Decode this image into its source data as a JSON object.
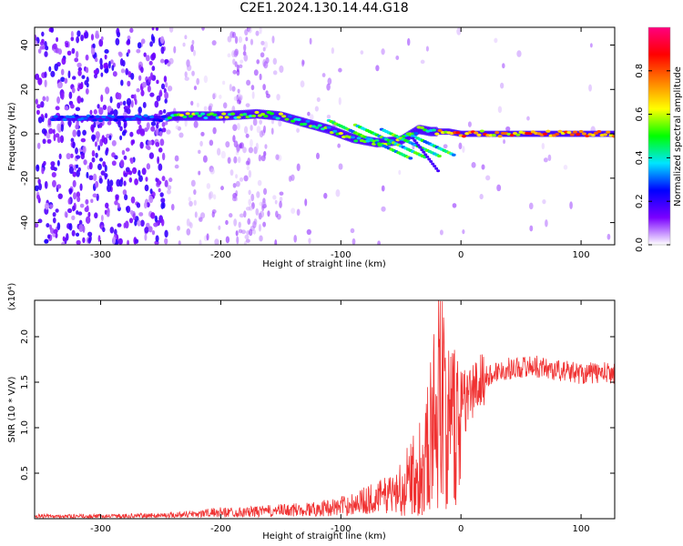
{
  "title": "C2E1.2024.130.14.44.G18",
  "chart_data": [
    {
      "type": "heatmap",
      "title": "C2E1.2024.130.14.44.G18",
      "xlabel": "Height of straight line (km)",
      "ylabel": "Frequency (Hz)",
      "xlim": [
        -355,
        128
      ],
      "ylim": [
        -50,
        48
      ],
      "xticks": [
        -300,
        -200,
        -100,
        0,
        100
      ],
      "yticks": [
        -40,
        -20,
        0,
        20,
        40
      ],
      "colorbar": {
        "label": "Normalized spectral amplitude",
        "range": [
          0,
          1
        ],
        "ticks": [
          0.0,
          0.2,
          0.4,
          0.6,
          0.8
        ],
        "tick_labels": [
          "0.0",
          "0.2",
          "0.4",
          "0.6",
          "0.8"
        ],
        "colors": [
          "#ffffff",
          "#7a00ff",
          "#0000ff",
          "#00e5ff",
          "#00ff00",
          "#ffff00",
          "#ff8000",
          "#ff0000",
          "#ff0080"
        ]
      },
      "signal_track": {
        "x": [
          -340,
          -300,
          -250,
          -240,
          -200,
          -170,
          -150,
          -130,
          -110,
          -90,
          -70,
          -50,
          -35,
          -25,
          -10,
          0,
          30,
          60,
          90,
          128
        ],
        "y": [
          7,
          7,
          7,
          8,
          8,
          9,
          8,
          5,
          2,
          -2,
          -4,
          -3,
          2,
          1,
          1,
          0,
          0,
          0,
          0,
          0
        ]
      },
      "grid": false,
      "legend": "colorbar-right"
    },
    {
      "type": "line",
      "xlabel": "Height of straight line (km)",
      "ylabel": "SNR (10 * V/V)",
      "y_multiplier": "(x10⁴)",
      "xlim": [
        -355,
        128
      ],
      "ylim": [
        0,
        2.4
      ],
      "xticks": [
        -300,
        -200,
        -100,
        0,
        100
      ],
      "yticks": [
        0.5,
        1.0,
        1.5,
        2.0
      ],
      "ytick_labels": [
        "0.5",
        "1.0",
        "1.5",
        "2.0"
      ],
      "color": "#f03232",
      "series": [
        {
          "x": [
            -355,
            -300,
            -250,
            -220,
            -200,
            -180,
            -150,
            -120,
            -100,
            -80,
            -60,
            -50,
            -40,
            -30,
            -25,
            -20,
            -18,
            -15,
            -10,
            -5,
            0,
            10,
            20,
            30,
            40,
            60,
            80,
            100,
            128
          ],
          "y": [
            0.03,
            0.03,
            0.04,
            0.06,
            0.08,
            0.08,
            0.1,
            0.12,
            0.15,
            0.22,
            0.3,
            0.4,
            0.55,
            0.8,
            1.1,
            1.5,
            2.3,
            1.6,
            1.1,
            1.2,
            1.25,
            1.4,
            1.55,
            1.62,
            1.65,
            1.68,
            1.63,
            1.6,
            1.6
          ]
        }
      ],
      "grid": false
    }
  ]
}
